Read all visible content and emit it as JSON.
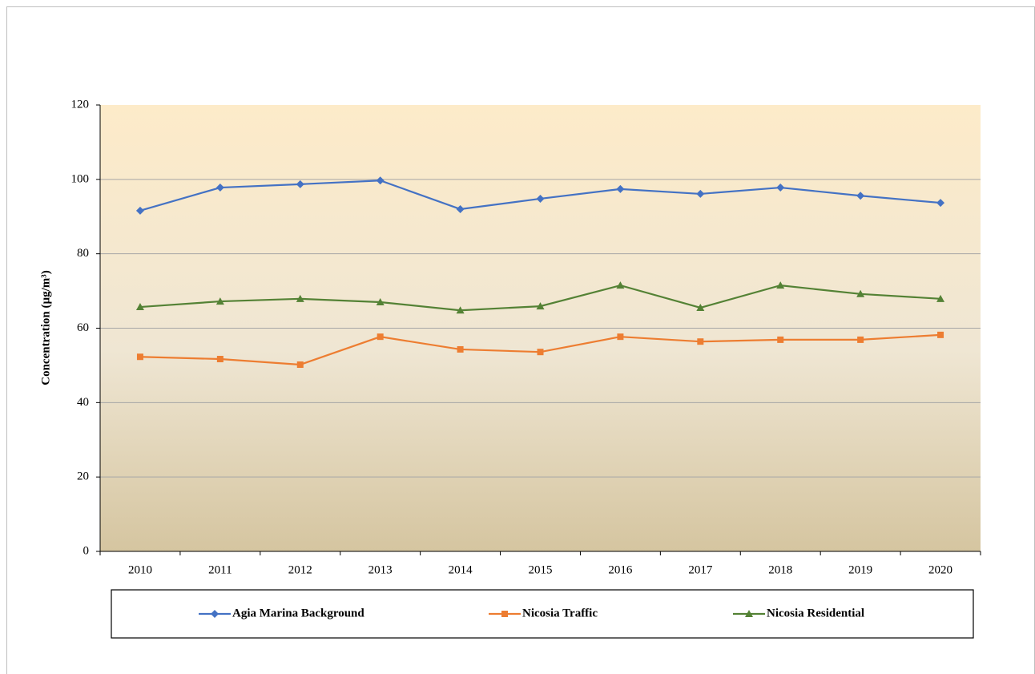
{
  "chart_data": {
    "type": "line",
    "ylabel": "Concentration (µg/m³)",
    "categories": [
      "2010",
      "2011",
      "2012",
      "2013",
      "2014",
      "2015",
      "2016",
      "2017",
      "2018",
      "2019",
      "2020"
    ],
    "series": [
      {
        "name": "Agia Marina Background",
        "color": "#4472c4",
        "marker": "diamond",
        "values": [
          91.6,
          97.8,
          98.7,
          99.7,
          92.0,
          94.8,
          97.4,
          96.1,
          97.8,
          95.6,
          93.7
        ]
      },
      {
        "name": "Nicosia Traffic",
        "color": "#ed7d31",
        "marker": "square",
        "values": [
          52.3,
          51.7,
          50.2,
          57.7,
          54.3,
          53.6,
          57.7,
          56.4,
          56.9,
          56.9,
          58.2
        ]
      },
      {
        "name": "Nicosia Residential",
        "color": "#548235",
        "marker": "triangle",
        "values": [
          65.7,
          67.2,
          67.9,
          67.0,
          64.8,
          65.9,
          71.5,
          65.5,
          71.5,
          69.2,
          67.9
        ]
      }
    ],
    "ylim": [
      0,
      120
    ],
    "yticks": [
      0,
      20,
      40,
      60,
      80,
      100,
      120
    ],
    "grid": true,
    "legend": "bottom"
  }
}
